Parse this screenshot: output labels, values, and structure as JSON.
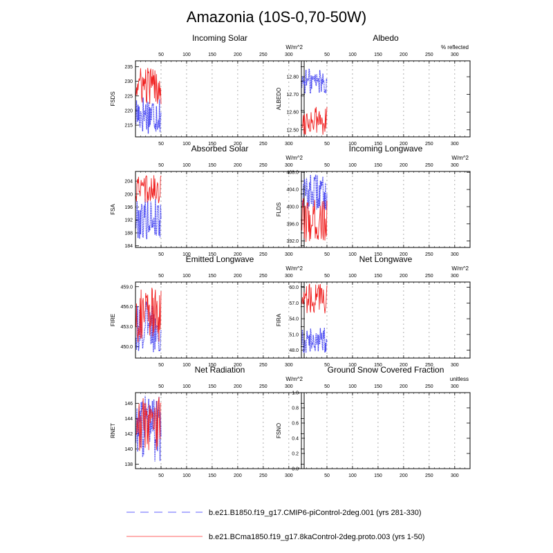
{
  "figure": {
    "title": "Amazonia (10S-0,70-50W)"
  },
  "colors": {
    "series_a": "#3c3cf0",
    "series_b": "#f02020",
    "top_ticks": "#2828e6",
    "bottom_ticks": "#e01c1c",
    "grid": "#999999"
  },
  "legend": [
    {
      "label": "b.e21.B1850.f19_g17.CMIP6-piControl-2deg.001 (yrs 281-330)",
      "style": "dashed",
      "color": "#8080ff"
    },
    {
      "label": "b.e21.BCma1850.f19_g17.8kaControl-2deg.proto.003 (yrs 1-50)",
      "style": "solid",
      "color": "#ff8080"
    }
  ],
  "chart_data": [
    {
      "type": "line",
      "title": "Incoming Solar",
      "ylabel": "FSDS",
      "units": "W/m^2",
      "xlim": [
        0,
        330
      ],
      "ylim": [
        211,
        237
      ],
      "yticks": [
        {
          "v": 215,
          "label": "215"
        },
        {
          "v": 220,
          "label": "220"
        },
        {
          "v": 225,
          "label": "225"
        },
        {
          "v": 230,
          "label": "230"
        },
        {
          "v": 235,
          "label": "235"
        }
      ],
      "xticks_top": [
        "50",
        "100",
        "150",
        "200",
        "250",
        "300"
      ],
      "xticks_bottom": [
        "50",
        "100",
        "150",
        "200",
        "250",
        "300"
      ],
      "series": [
        {
          "style": "dashed",
          "color": "#3c3cf0",
          "x": [
            1,
            50
          ],
          "range": [
            212,
            226
          ]
        },
        {
          "style": "solid",
          "color": "#f02020",
          "x": [
            1,
            50
          ],
          "range": [
            222,
            235
          ]
        }
      ]
    },
    {
      "type": "line",
      "title": "Albedo",
      "ylabel": "ALBEDO",
      "units": "% reflected",
      "xlim": [
        0,
        330
      ],
      "ylim": [
        12.46,
        12.89
      ],
      "yticks": [
        {
          "v": 12.5,
          "label": "12.50"
        },
        {
          "v": 12.6,
          "label": "12.60"
        },
        {
          "v": 12.7,
          "label": "12.70"
        },
        {
          "v": 12.8,
          "label": "12.80"
        }
      ],
      "xticks_top": [
        "50",
        "100",
        "150",
        "200",
        "250",
        "300"
      ],
      "xticks_bottom": [
        "50",
        "100",
        "150",
        "200",
        "250",
        "300"
      ],
      "series": [
        {
          "style": "dashed",
          "color": "#3c3cf0",
          "x": [
            1,
            50
          ],
          "range": [
            12.7,
            12.85
          ]
        },
        {
          "style": "solid",
          "color": "#f02020",
          "x": [
            1,
            50
          ],
          "range": [
            12.47,
            12.63
          ]
        }
      ]
    },
    {
      "type": "line",
      "title": "Absorbed Solar",
      "ylabel": "FSA",
      "units": "W/m^2",
      "xlim": [
        0,
        330
      ],
      "ylim": [
        183.5,
        207
      ],
      "yticks": [
        {
          "v": 184,
          "label": "184"
        },
        {
          "v": 188,
          "label": "188"
        },
        {
          "v": 192,
          "label": "192"
        },
        {
          "v": 196,
          "label": "196"
        },
        {
          "v": 200,
          "label": "200"
        },
        {
          "v": 204,
          "label": "204"
        }
      ],
      "xticks_top": [
        "50",
        "100",
        "150",
        "200",
        "250",
        "300"
      ],
      "xticks_bottom": [
        "50",
        "100",
        "150",
        "200",
        "250",
        "300"
      ],
      "series": [
        {
          "style": "dashed",
          "color": "#3c3cf0",
          "x": [
            1,
            50
          ],
          "range": [
            186,
            199
          ]
        },
        {
          "style": "solid",
          "color": "#f02020",
          "x": [
            1,
            50
          ],
          "range": [
            197,
            206
          ]
        }
      ]
    },
    {
      "type": "line",
      "title": "Incoming Longwave",
      "ylabel": "FLDS",
      "units": "W/m^2",
      "xlim": [
        0,
        330
      ],
      "ylim": [
        390.5,
        408.2
      ],
      "yticks": [
        {
          "v": 392,
          "label": "392.0"
        },
        {
          "v": 396,
          "label": "396.0"
        },
        {
          "v": 400,
          "label": "400.0"
        },
        {
          "v": 404,
          "label": "404.0"
        },
        {
          "v": 408,
          "label": "408.0"
        }
      ],
      "xticks_top": [
        "50",
        "100",
        "150",
        "200",
        "250",
        "300"
      ],
      "xticks_bottom": [
        "50",
        "100",
        "150",
        "200",
        "250",
        "300"
      ],
      "series": [
        {
          "style": "dashed",
          "color": "#3c3cf0",
          "x": [
            1,
            50
          ],
          "range": [
            399,
            407.5
          ]
        },
        {
          "style": "solid",
          "color": "#f02020",
          "x": [
            1,
            50
          ],
          "range": [
            391.5,
            402
          ]
        }
      ]
    },
    {
      "type": "line",
      "title": "Emitted Longwave",
      "ylabel": "FIRE",
      "units": "W/m^2",
      "xlim": [
        0,
        330
      ],
      "ylim": [
        448.3,
        459.7
      ],
      "yticks": [
        {
          "v": 450,
          "label": "450.0"
        },
        {
          "v": 453,
          "label": "453.0"
        },
        {
          "v": 456,
          "label": "456.0"
        },
        {
          "v": 459,
          "label": "459.0"
        }
      ],
      "xticks_top": [
        "50",
        "100",
        "150",
        "200",
        "250",
        "300"
      ],
      "xticks_bottom": [
        "50",
        "100",
        "150",
        "200",
        "250",
        "300"
      ],
      "series": [
        {
          "style": "dashed",
          "color": "#3c3cf0",
          "x": [
            1,
            50
          ],
          "range": [
            449,
            457
          ]
        },
        {
          "style": "solid",
          "color": "#f02020",
          "x": [
            1,
            50
          ],
          "range": [
            450.5,
            459
          ]
        }
      ]
    },
    {
      "type": "line",
      "title": "Net Longwave",
      "ylabel": "FIRA",
      "units": "W/m^2",
      "xlim": [
        0,
        330
      ],
      "ylim": [
        46.5,
        61
      ],
      "yticks": [
        {
          "v": 48,
          "label": "48.0"
        },
        {
          "v": 51,
          "label": "51.0"
        },
        {
          "v": 54,
          "label": "54.0"
        },
        {
          "v": 57,
          "label": "57.0"
        },
        {
          "v": 60,
          "label": "60.0"
        }
      ],
      "xticks_top": [
        "50",
        "100",
        "150",
        "200",
        "250",
        "300"
      ],
      "xticks_bottom": [
        "50",
        "100",
        "150",
        "200",
        "250",
        "300"
      ],
      "series": [
        {
          "style": "dashed",
          "color": "#3c3cf0",
          "x": [
            1,
            50
          ],
          "range": [
            47.5,
            52.5
          ]
        },
        {
          "style": "solid",
          "color": "#f02020",
          "x": [
            1,
            50
          ],
          "range": [
            55,
            61
          ]
        }
      ]
    },
    {
      "type": "line",
      "title": "Net Radiation",
      "ylabel": "RNET",
      "units": "W/m^2",
      "xlim": [
        0,
        330
      ],
      "ylim": [
        137.4,
        147.4
      ],
      "yticks": [
        {
          "v": 138,
          "label": "138"
        },
        {
          "v": 140,
          "label": "140"
        },
        {
          "v": 142,
          "label": "142"
        },
        {
          "v": 144,
          "label": "144"
        },
        {
          "v": 146,
          "label": "146"
        }
      ],
      "xticks_top": [
        "50",
        "100",
        "150",
        "200",
        "250",
        "300"
      ],
      "xticks_bottom": [
        "50",
        "100",
        "150",
        "200",
        "250",
        "300"
      ],
      "series": [
        {
          "style": "dashed",
          "color": "#3c3cf0",
          "x": [
            1,
            50
          ],
          "range": [
            138,
            147
          ]
        },
        {
          "style": "solid",
          "color": "#f02020",
          "x": [
            1,
            50
          ],
          "range": [
            139.5,
            147
          ]
        }
      ]
    },
    {
      "type": "line",
      "title": "Ground Snow Covered Fraction",
      "ylabel": "FSNO",
      "units": "unitless",
      "xlim": [
        0,
        330
      ],
      "ylim": [
        0,
        1
      ],
      "yticks": [
        {
          "v": 0,
          "label": "0.0"
        },
        {
          "v": 0.2,
          "label": "0.2"
        },
        {
          "v": 0.4,
          "label": "0.4"
        },
        {
          "v": 0.6,
          "label": "0.6"
        },
        {
          "v": 0.8,
          "label": "0.8"
        },
        {
          "v": 1.0,
          "label": "1.0"
        }
      ],
      "xticks_top": [
        "50",
        "100",
        "150",
        "200",
        "250",
        "300"
      ],
      "xticks_bottom": [
        "50",
        "100",
        "150",
        "200",
        "250",
        "300"
      ],
      "series": []
    }
  ]
}
